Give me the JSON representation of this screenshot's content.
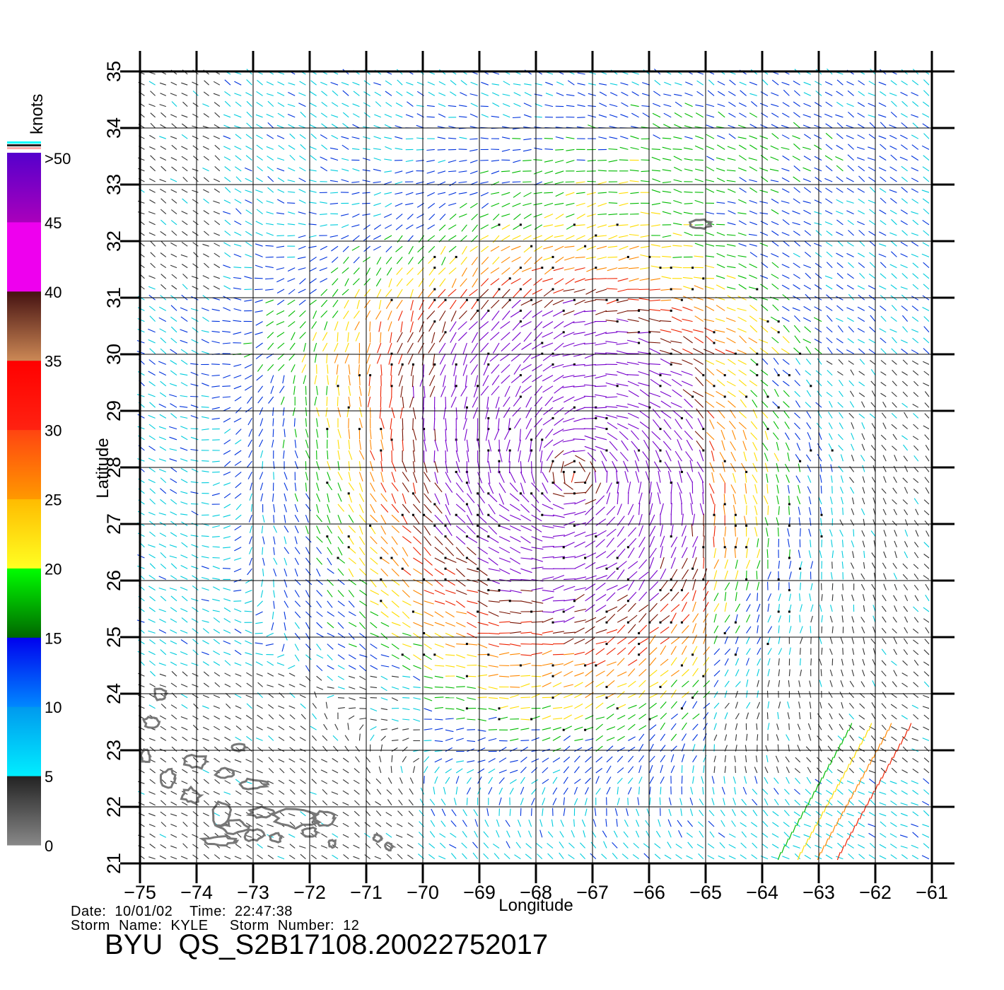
{
  "chart_data": {
    "type": "wind-vector-map",
    "xlabel": "Longitude",
    "ylabel": "Latitude",
    "xlim": [
      -75,
      -61
    ],
    "ylim": [
      21,
      35
    ],
    "xticks": [
      "−75",
      "−74",
      "−73",
      "−72",
      "−71",
      "−70",
      "−69",
      "−68",
      "−67",
      "−66",
      "−65",
      "−64",
      "−63",
      "−62",
      "−61"
    ],
    "yticks": [
      "21",
      "22",
      "23",
      "24",
      "25",
      "26",
      "27",
      "28",
      "29",
      "30",
      "31",
      "32",
      "33",
      "34",
      "35"
    ],
    "grid": true,
    "storm_center": {
      "lon": -67.3,
      "lat": 27.9
    },
    "colorbar": {
      "unit_label": "knots",
      "tick_labels": [
        "0",
        "5",
        "10",
        "15",
        "20",
        "25",
        "30",
        "35",
        "40",
        "45",
        ">50"
      ],
      "bands": [
        {
          "min": 0,
          "max": 5,
          "colors": [
            "#888888",
            "#222222"
          ]
        },
        {
          "min": 5,
          "max": 10,
          "colors": [
            "#00eeff",
            "#0099ee"
          ]
        },
        {
          "min": 10,
          "max": 15,
          "colors": [
            "#0088ff",
            "#0000ee"
          ]
        },
        {
          "min": 15,
          "max": 20,
          "colors": [
            "#006600",
            "#00ff00"
          ]
        },
        {
          "min": 20,
          "max": 25,
          "colors": [
            "#ffff22",
            "#ffbb00"
          ]
        },
        {
          "min": 25,
          "max": 30,
          "colors": [
            "#ff9900",
            "#ff4411"
          ]
        },
        {
          "min": 30,
          "max": 35,
          "colors": [
            "#ff2211",
            "#ff0000"
          ]
        },
        {
          "min": 35,
          "max": 40,
          "colors": [
            "#cc8855",
            "#441111"
          ]
        },
        {
          "min": 40,
          "max": 45,
          "colors": [
            "#ee00ee",
            "#ee00ee"
          ]
        },
        {
          "min": 45,
          "max": 50,
          "colors": [
            "#aa00bb",
            "#5500cc"
          ]
        }
      ],
      "top_stripes": [
        "#00ffff",
        "#222222",
        "#ffaaaa"
      ]
    },
    "speed_colors": {
      "calm": "#333333",
      "cyan": "#00ccdd",
      "blue": "#0033dd",
      "green": "#00bb00",
      "yellow": "#ffdd00",
      "orange": "#ff8800",
      "red": "#ee2200",
      "brown": "#771100",
      "purple": "#7700cc"
    },
    "rain_flag_color": "#000000",
    "coastline_color": "#777777"
  },
  "footer": {
    "date_line": "Date:  10/01/02    Time:  22:47:38",
    "storm_line": "Storm  Name:  KYLE     Storm  Number:  12",
    "file_id": "BYU  QS_S2B17108.20022752017"
  }
}
